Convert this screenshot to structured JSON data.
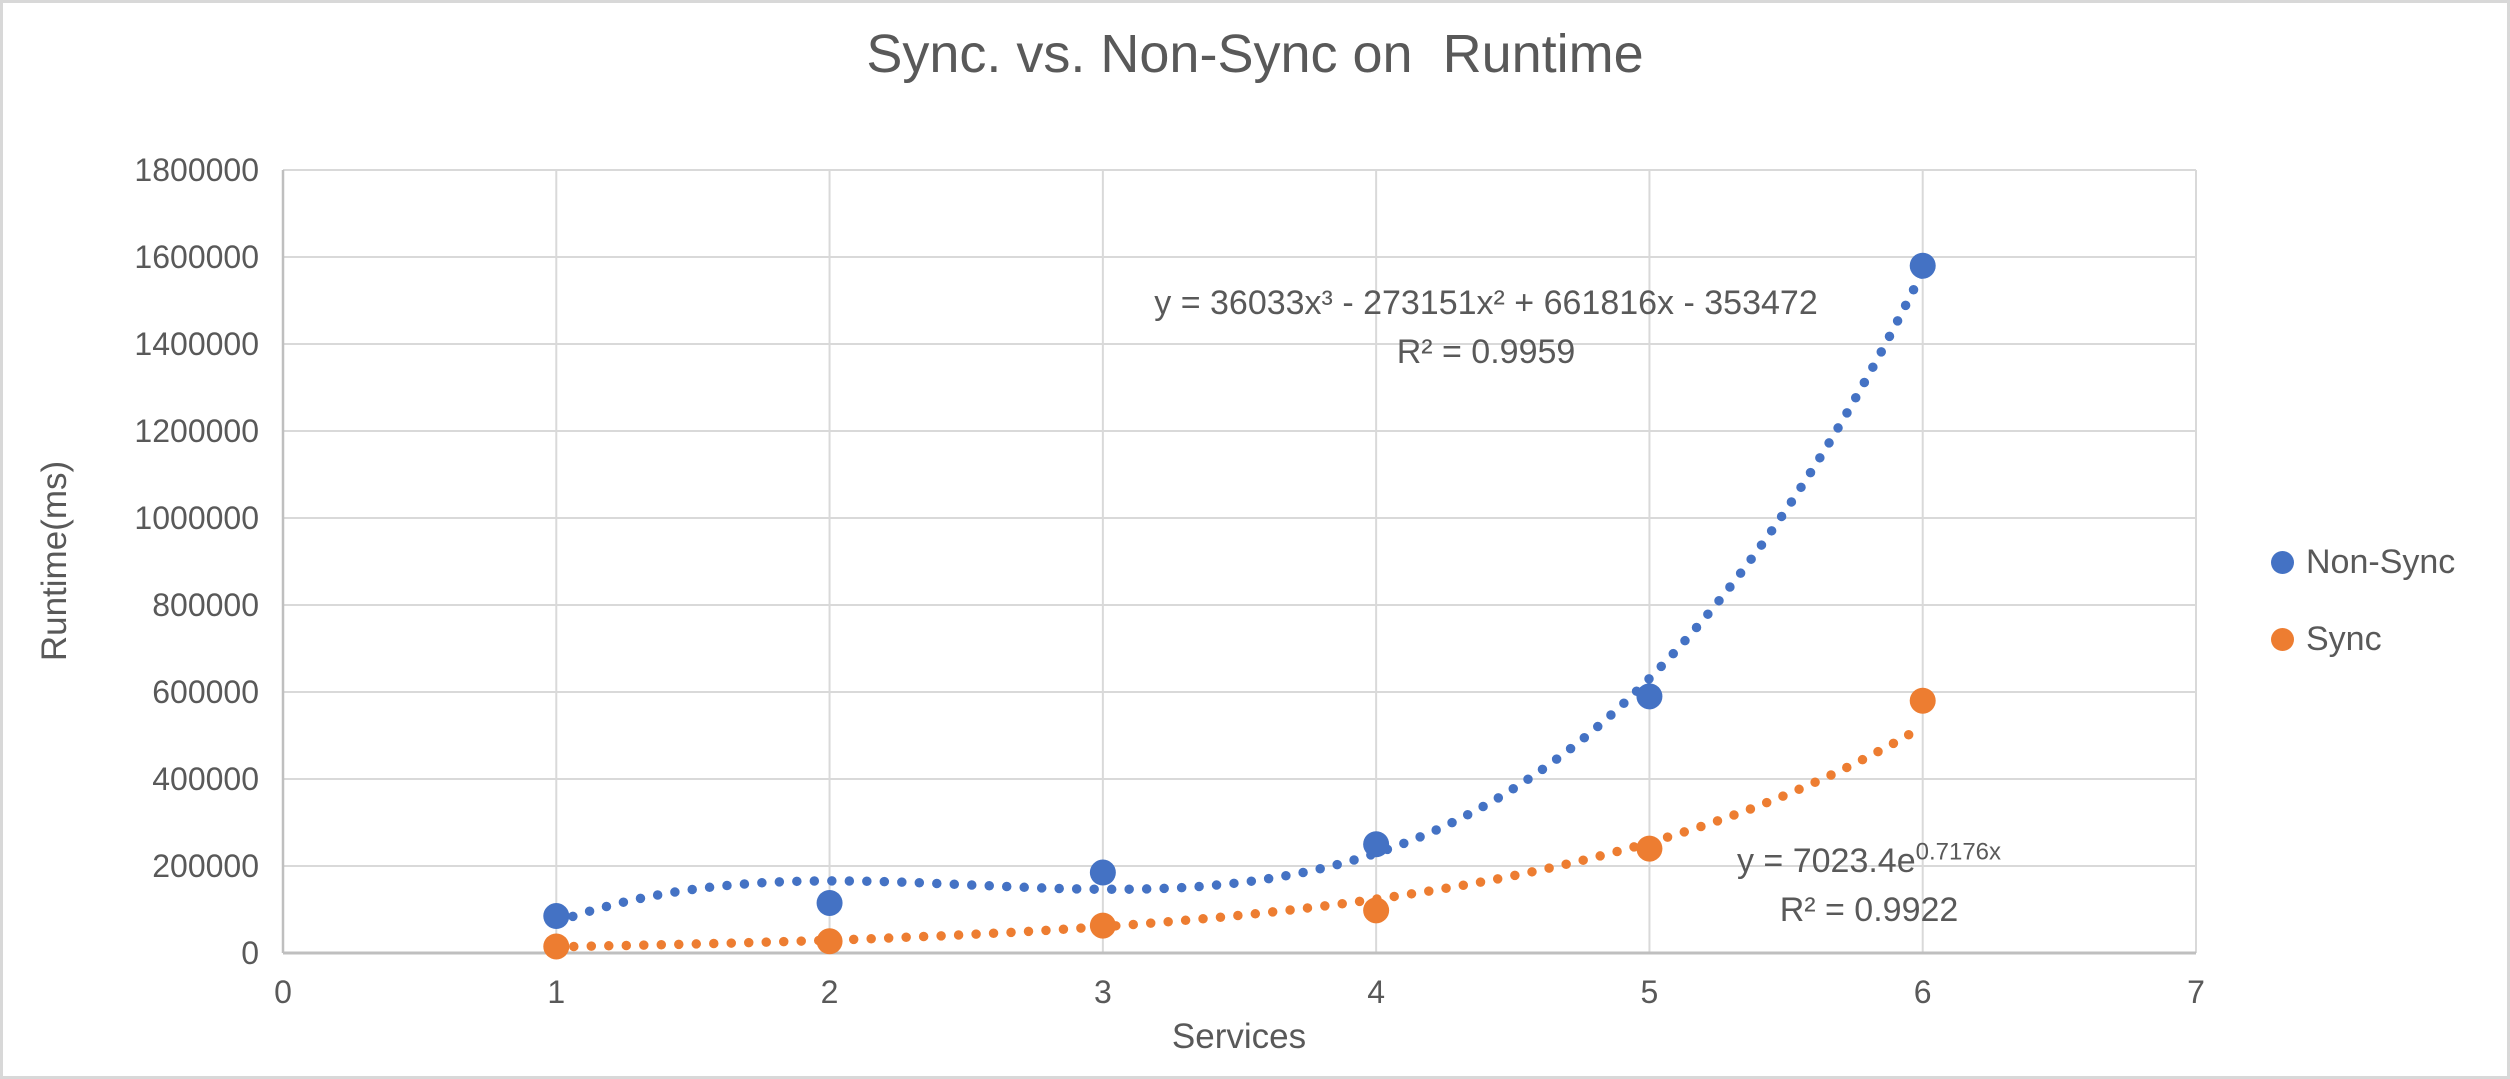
{
  "title": "Sync. vs. Non-Sync on  Runtime",
  "chart_data": {
    "type": "scatter",
    "x": [
      1,
      2,
      3,
      4,
      5,
      6
    ],
    "series": [
      {
        "name": "Non-Sync",
        "color": "#4472C4",
        "values": [
          85000,
          115000,
          185000,
          250000,
          590000,
          1580000
        ]
      },
      {
        "name": "Sync",
        "color": "#ED7D31",
        "values": [
          15000,
          27000,
          63000,
          98000,
          240000,
          580000
        ]
      }
    ],
    "title": "Sync. vs. Non-Sync on  Runtime",
    "xlabel": "Services",
    "ylabel": "Runtime(ms)",
    "xlim": [
      0,
      7
    ],
    "ylim": [
      0,
      1800000
    ],
    "x_ticks": [
      0,
      1,
      2,
      3,
      4,
      5,
      6,
      7
    ],
    "y_ticks": [
      0,
      200000,
      400000,
      600000,
      800000,
      1000000,
      1200000,
      1400000,
      1600000,
      1800000
    ],
    "grid": true,
    "legend_position": "right",
    "trendlines": [
      {
        "series": "Non-Sync",
        "type": "polynomial",
        "order": 3,
        "coefficients": [
          36033,
          -273151,
          661816,
          -353472
        ],
        "equation": "y = 36033x³ - 273151x² + 661816x - 353472",
        "r_squared": "R² = 0.9959",
        "color": "#4472C4",
        "x_range": [
          1,
          6
        ]
      },
      {
        "series": "Sync",
        "type": "exponential",
        "a": 7023.4,
        "b": 0.7176,
        "equation_base": "y = 7023.4e",
        "equation_exponent": "0.7176x",
        "r_squared": "R² = 0.9922",
        "color": "#ED7D31",
        "x_range": [
          1,
          6
        ]
      }
    ]
  },
  "legend": [
    {
      "label": "Non-Sync",
      "color": "#4472C4"
    },
    {
      "label": "Sync",
      "color": "#ED7D31"
    }
  ],
  "colors": {
    "text": "#595959",
    "gridline": "#D9D9D9",
    "axis_line": "#BFBFBF",
    "background": "#FFFFFF",
    "series_non_sync": "#4472C4",
    "series_sync": "#ED7D31"
  }
}
